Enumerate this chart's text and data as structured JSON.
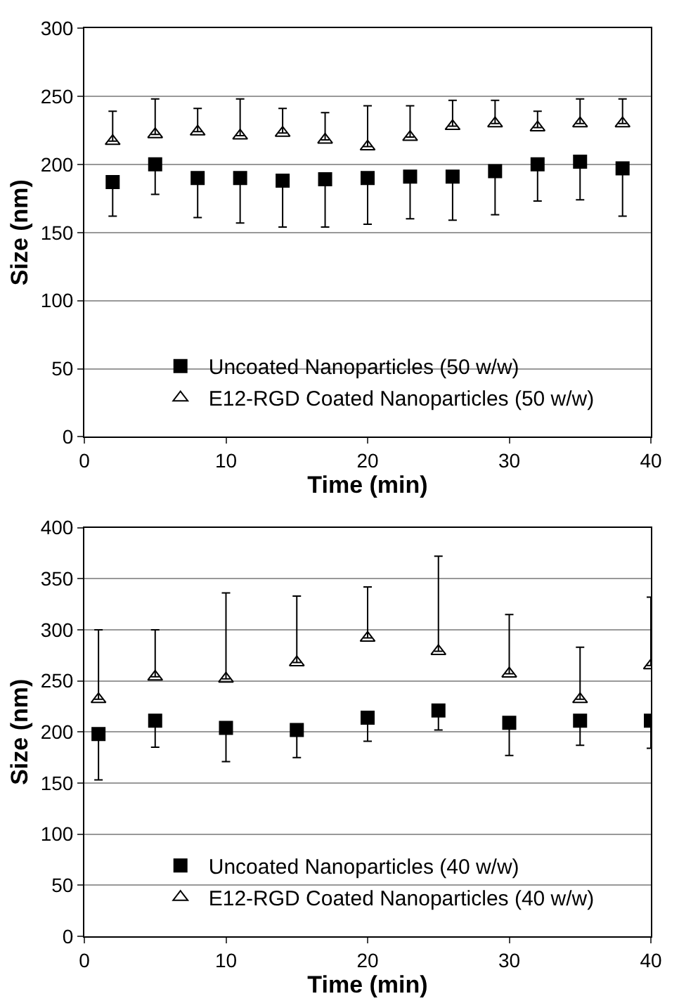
{
  "chart_data": [
    {
      "type": "scatter",
      "xlabel": "Time (min)",
      "ylabel": "Size (nm)",
      "x": [
        2,
        5,
        8,
        11,
        14,
        17,
        20,
        23,
        26,
        29,
        32,
        35,
        38
      ],
      "xlim": [
        0,
        40
      ],
      "xticks": [
        0,
        10,
        20,
        30,
        40
      ],
      "ylim": [
        0,
        300
      ],
      "yticks": [
        0,
        50,
        100,
        150,
        200,
        250,
        300
      ],
      "grid": "y",
      "legend": "bottom left",
      "series": [
        {
          "name": "Uncoated Nanoparticles (50 w/w)",
          "color": "#000000",
          "marker": "square",
          "values": [
            187,
            200,
            190,
            190,
            188,
            189,
            190,
            191,
            191,
            195,
            200,
            202,
            197
          ],
          "errors": [
            [
              162,
              187
            ],
            [
              178,
              200
            ],
            [
              161,
              190
            ],
            [
              157,
              190
            ],
            [
              154,
              188
            ],
            [
              154,
              189
            ],
            [
              156,
              190
            ],
            [
              160,
              191
            ],
            [
              159,
              191
            ],
            [
              163,
              195
            ],
            [
              173,
              200
            ],
            [
              174,
              202
            ],
            [
              162,
              197
            ]
          ]
        },
        {
          "name": "E12-RGD Coated Nanoparticles (50 w/w)",
          "color": "#000000",
          "marker": "triangle",
          "values": [
            217,
            222,
            224,
            221,
            223,
            218,
            213,
            220,
            228,
            230,
            227,
            230,
            230
          ],
          "errors": [
            [
              217,
              239
            ],
            [
              222,
              248
            ],
            [
              224,
              241
            ],
            [
              221,
              248
            ],
            [
              223,
              241
            ],
            [
              218,
              238
            ],
            [
              213,
              243
            ],
            [
              220,
              243
            ],
            [
              228,
              247
            ],
            [
              230,
              247
            ],
            [
              227,
              239
            ],
            [
              230,
              248
            ],
            [
              230,
              248
            ]
          ]
        }
      ]
    },
    {
      "type": "scatter",
      "xlabel": "Time (min)",
      "ylabel": "Size (nm)",
      "x": [
        1,
        5,
        10,
        15,
        20,
        25,
        30,
        35,
        40
      ],
      "xlim": [
        0,
        40
      ],
      "xticks": [
        0,
        10,
        20,
        30,
        40
      ],
      "ylim": [
        0,
        400
      ],
      "yticks": [
        0,
        50,
        100,
        150,
        200,
        250,
        300,
        350,
        400
      ],
      "grid": "y",
      "legend": "bottom left",
      "series": [
        {
          "name": "Uncoated Nanoparticles (40 w/w)",
          "color": "#000000",
          "marker": "square",
          "values": [
            198,
            211,
            204,
            202,
            214,
            221,
            209,
            211,
            211
          ],
          "errors": [
            [
              153,
              198
            ],
            [
              185,
              211
            ],
            [
              171,
              204
            ],
            [
              175,
              202
            ],
            [
              191,
              214
            ],
            [
              202,
              221
            ],
            [
              177,
              209
            ],
            [
              187,
              211
            ],
            [
              184,
              211
            ]
          ]
        },
        {
          "name": "E12-RGD Coated Nanoparticles (40 w/w)",
          "color": "#000000",
          "marker": "triangle",
          "values": [
            232,
            254,
            252,
            268,
            292,
            279,
            257,
            232,
            265
          ],
          "errors": [
            [
              232,
              300
            ],
            [
              254,
              300
            ],
            [
              252,
              336
            ],
            [
              268,
              333
            ],
            [
              292,
              342
            ],
            [
              279,
              372
            ],
            [
              257,
              315
            ],
            [
              232,
              283
            ],
            [
              265,
              332
            ]
          ]
        }
      ]
    }
  ]
}
